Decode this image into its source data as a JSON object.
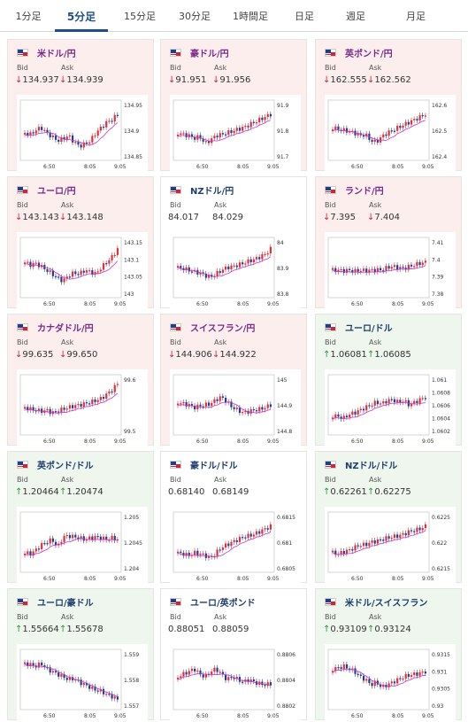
{
  "tabs": [
    {
      "label": "1分足",
      "active": false
    },
    {
      "label": "5分足",
      "active": true
    },
    {
      "label": "15分足",
      "active": false
    },
    {
      "label": "30分足",
      "active": false
    },
    {
      "label": "1時間足",
      "active": false
    },
    {
      "label": "日足",
      "active": false
    },
    {
      "label": "週足",
      "active": false
    },
    {
      "label": "月足",
      "active": false
    }
  ],
  "labels": {
    "bid": "Bid",
    "ask": "Ask"
  },
  "colors": {
    "down_bg": "#fdeeee",
    "up_bg": "#eef6ee",
    "up_candle": "#e0303a",
    "down_candle": "#1f3e8c",
    "ma1": "#cc33cc",
    "ma2": "#33aadd"
  },
  "cards": [
    {
      "title": "米ドル/円",
      "flag": "us-jp-flag",
      "trend": "down",
      "bid": "134.937",
      "ask": "134.939",
      "bid_dir": "down",
      "ask_dir": "down",
      "yticks": [
        "134.95",
        "134.9",
        "134.85"
      ],
      "xticks": [
        "6:50",
        "8:05",
        "9:05"
      ],
      "shape": [
        0.55,
        0.58,
        0.5,
        0.45,
        0.55,
        0.62,
        0.7,
        0.66,
        0.6,
        0.72,
        0.8,
        0.76,
        0.7,
        0.55,
        0.45,
        0.35,
        0.3,
        0.2
      ]
    },
    {
      "title": "豪ドル/円",
      "flag": "au-jp-flag",
      "trend": "down",
      "bid": "91.951",
      "ask": "91.956",
      "bid_dir": "down",
      "ask_dir": "down",
      "yticks": [
        "91.9",
        "91.8",
        "91.7"
      ],
      "xticks": [
        "6:50",
        "8:05",
        "9:05"
      ],
      "shape": [
        0.55,
        0.58,
        0.6,
        0.65,
        0.62,
        0.75,
        0.68,
        0.6,
        0.58,
        0.55,
        0.52,
        0.48,
        0.45,
        0.4,
        0.35,
        0.3,
        0.25,
        0.2
      ]
    },
    {
      "title": "英ポンド/円",
      "flag": "gb-jp-flag",
      "trend": "down",
      "bid": "162.555",
      "ask": "162.562",
      "bid_dir": "down",
      "ask_dir": "down",
      "yticks": [
        "162.6",
        "162.5",
        "162.4"
      ],
      "xticks": [
        "6:50",
        "8:05",
        "9:05"
      ],
      "shape": [
        0.45,
        0.48,
        0.5,
        0.52,
        0.55,
        0.6,
        0.58,
        0.7,
        0.72,
        0.62,
        0.55,
        0.5,
        0.45,
        0.4,
        0.35,
        0.3,
        0.25,
        0.2
      ]
    },
    {
      "title": "ユーロ/円",
      "flag": "eu-jp-flag",
      "trend": "down",
      "bid": "143.143",
      "ask": "143.148",
      "bid_dir": "down",
      "ask_dir": "down",
      "yticks": [
        "143.15",
        "143.1",
        "143.05",
        "143"
      ],
      "xticks": [
        "6:50",
        "8:05",
        "9:05"
      ],
      "shape": [
        0.4,
        0.45,
        0.42,
        0.48,
        0.55,
        0.62,
        0.7,
        0.75,
        0.65,
        0.6,
        0.62,
        0.55,
        0.58,
        0.62,
        0.5,
        0.4,
        0.3,
        0.15
      ]
    },
    {
      "title": "NZドル/円",
      "flag": "nz-jp-flag",
      "trend": "flat",
      "bid": "84.017",
      "ask": "84.029",
      "bid_dir": "none",
      "ask_dir": "none",
      "yticks": [
        "84",
        "83.9",
        "83.8"
      ],
      "xticks": [
        "6:50",
        "8:05",
        "9:05"
      ],
      "shape": [
        0.5,
        0.52,
        0.55,
        0.58,
        0.6,
        0.65,
        0.68,
        0.62,
        0.55,
        0.5,
        0.48,
        0.45,
        0.42,
        0.38,
        0.35,
        0.3,
        0.25,
        0.15
      ]
    },
    {
      "title": "ランド/円",
      "flag": "za-jp-flag",
      "trend": "down",
      "bid": "7.395",
      "ask": "7.404",
      "bid_dir": "down",
      "ask_dir": "down",
      "yticks": [
        "7.41",
        "7.4",
        "7.39",
        "7.38"
      ],
      "xticks": [
        "6:50",
        "8:05",
        "9:05"
      ],
      "shape": [
        0.55,
        0.55,
        0.56,
        0.55,
        0.57,
        0.55,
        0.56,
        0.55,
        0.54,
        0.55,
        0.5,
        0.48,
        0.5,
        0.52,
        0.48,
        0.45,
        0.42,
        0.4
      ]
    },
    {
      "title": "カナダドル/円",
      "flag": "ca-jp-flag",
      "trend": "down",
      "bid": "99.635",
      "ask": "99.650",
      "bid_dir": "down",
      "ask_dir": "down",
      "yticks": [
        "99.6",
        "99.5"
      ],
      "xticks": [
        "6:50",
        "8:05",
        "9:05"
      ],
      "shape": [
        0.55,
        0.58,
        0.6,
        0.62,
        0.6,
        0.65,
        0.62,
        0.58,
        0.55,
        0.52,
        0.5,
        0.48,
        0.45,
        0.42,
        0.38,
        0.3,
        0.22,
        0.1
      ]
    },
    {
      "title": "スイスフラン/円",
      "flag": "ch-jp-flag",
      "trend": "down",
      "bid": "144.906",
      "ask": "144.922",
      "bid_dir": "down",
      "ask_dir": "down",
      "yticks": [
        "145",
        "144.9",
        "144.8"
      ],
      "xticks": [
        "6:50",
        "8:05",
        "9:05"
      ],
      "shape": [
        0.45,
        0.48,
        0.5,
        0.55,
        0.52,
        0.5,
        0.48,
        0.4,
        0.35,
        0.45,
        0.55,
        0.6,
        0.65,
        0.62,
        0.6,
        0.58,
        0.55,
        0.5
      ]
    },
    {
      "title": "ユーロ/ドル",
      "flag": "eu-us-flag",
      "trend": "up",
      "bid": "1.06081",
      "ask": "1.06085",
      "bid_dir": "up",
      "ask_dir": "up",
      "yticks": [
        "1.061",
        "1.0608",
        "1.0606",
        "1.0604",
        "1.0602"
      ],
      "xticks": [
        "6:50",
        "8:05",
        "9:05"
      ],
      "shape": [
        0.7,
        0.72,
        0.75,
        0.68,
        0.65,
        0.6,
        0.55,
        0.5,
        0.45,
        0.48,
        0.42,
        0.4,
        0.45,
        0.42,
        0.5,
        0.45,
        0.4,
        0.35
      ]
    },
    {
      "title": "英ポンド/ドル",
      "flag": "gb-us-flag",
      "trend": "up",
      "bid": "1.20464",
      "ask": "1.20474",
      "bid_dir": "up",
      "ask_dir": "up",
      "yticks": [
        "1.205",
        "1.2045",
        "1.204"
      ],
      "xticks": [
        "6:50",
        "8:05",
        "9:05"
      ],
      "shape": [
        0.7,
        0.72,
        0.65,
        0.55,
        0.5,
        0.45,
        0.6,
        0.4,
        0.38,
        0.4,
        0.42,
        0.45,
        0.42,
        0.4,
        0.42,
        0.45,
        0.42,
        0.45
      ]
    },
    {
      "title": "豪ドル/ドル",
      "flag": "au-us-flag",
      "trend": "flat",
      "bid": "0.68140",
      "ask": "0.68149",
      "bid_dir": "none",
      "ask_dir": "none",
      "yticks": [
        "0.6815",
        "0.681",
        "0.6805"
      ],
      "xticks": [
        "6:50",
        "8:05",
        "9:05"
      ],
      "shape": [
        0.7,
        0.72,
        0.75,
        0.7,
        0.72,
        0.75,
        0.8,
        0.7,
        0.6,
        0.55,
        0.5,
        0.45,
        0.4,
        0.38,
        0.35,
        0.3,
        0.25,
        0.2
      ]
    },
    {
      "title": "NZドル/ドル",
      "flag": "nz-us-flag",
      "trend": "up",
      "bid": "0.62261",
      "ask": "0.62275",
      "bid_dir": "up",
      "ask_dir": "up",
      "yticks": [
        "0.6225",
        "0.622",
        "0.6215"
      ],
      "xticks": [
        "6:50",
        "8:05",
        "9:05"
      ],
      "shape": [
        0.7,
        0.72,
        0.68,
        0.65,
        0.6,
        0.55,
        0.55,
        0.5,
        0.48,
        0.45,
        0.42,
        0.4,
        0.38,
        0.35,
        0.3,
        0.28,
        0.25,
        0.2
      ]
    },
    {
      "title": "ユーロ/豪ドル",
      "flag": "eu-au-flag",
      "trend": "up",
      "bid": "1.55664",
      "ask": "1.55678",
      "bid_dir": "up",
      "ask_dir": "up",
      "yticks": [
        "1.559",
        "1.558",
        "1.557"
      ],
      "xticks": [
        "6:50",
        "8:05",
        "9:05"
      ],
      "shape": [
        0.2,
        0.22,
        0.25,
        0.2,
        0.3,
        0.35,
        0.4,
        0.45,
        0.5,
        0.48,
        0.55,
        0.6,
        0.65,
        0.7,
        0.72,
        0.78,
        0.82,
        0.88
      ]
    },
    {
      "title": "ユーロ/英ポンド",
      "flag": "eu-gb-flag",
      "trend": "flat",
      "bid": "0.88051",
      "ask": "0.88059",
      "bid_dir": "none",
      "ask_dir": "none",
      "yticks": [
        "0.8806",
        "0.8804",
        "0.8802"
      ],
      "xticks": [
        "6:50",
        "8:05",
        "9:05"
      ],
      "shape": [
        0.45,
        0.4,
        0.35,
        0.3,
        0.4,
        0.45,
        0.35,
        0.3,
        0.4,
        0.5,
        0.45,
        0.5,
        0.55,
        0.5,
        0.55,
        0.58,
        0.6,
        0.58
      ]
    },
    {
      "title": "米ドル/スイスフラン",
      "flag": "us-ch-flag",
      "trend": "up",
      "bid": "0.93109",
      "ask": "0.93124",
      "bid_dir": "up",
      "ask_dir": "up",
      "yticks": [
        "0.9315",
        "0.931",
        "0.9305",
        "0.93"
      ],
      "xticks": [
        "6:50",
        "8:05",
        "9:05"
      ],
      "shape": [
        0.3,
        0.28,
        0.25,
        0.3,
        0.35,
        0.45,
        0.5,
        0.6,
        0.55,
        0.65,
        0.6,
        0.55,
        0.5,
        0.45,
        0.42,
        0.4,
        0.38,
        0.35
      ]
    }
  ]
}
